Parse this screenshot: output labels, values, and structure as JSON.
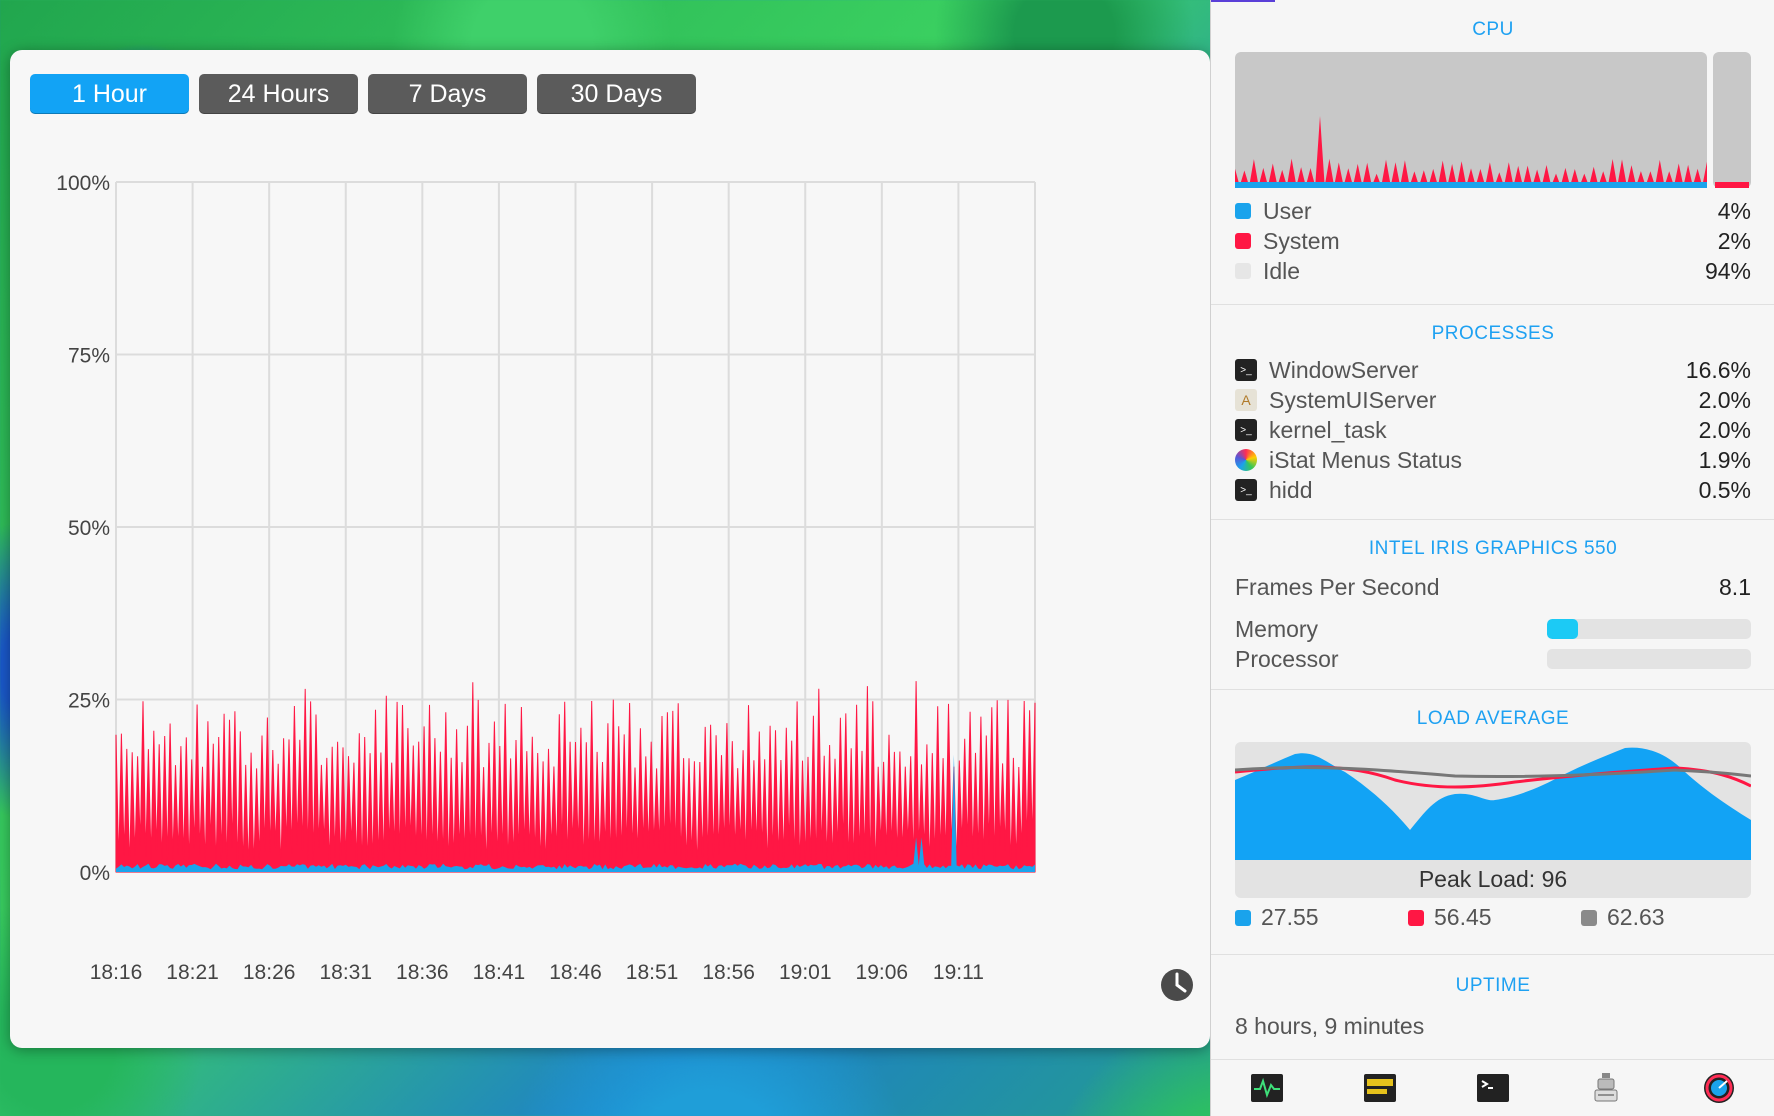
{
  "history": {
    "tabs": [
      {
        "label": "1 Hour",
        "active": true
      },
      {
        "label": "24 Hours",
        "active": false
      },
      {
        "label": "7 Days",
        "active": false
      },
      {
        "label": "30 Days",
        "active": false
      }
    ]
  },
  "chart_data": {
    "type": "area",
    "title": "",
    "xlabel": "",
    "ylabel": "",
    "y_tick_labels": [
      "100%",
      "75%",
      "50%",
      "25%",
      "0%"
    ],
    "x_tick_labels": [
      "18:16",
      "18:21",
      "18:26",
      "18:31",
      "18:36",
      "18:41",
      "18:46",
      "18:51",
      "18:56",
      "19:01",
      "19:06",
      "19:11"
    ],
    "ylim": [
      0,
      100
    ],
    "grid": true,
    "series": [
      {
        "name": "System",
        "color": "#ff1744",
        "typical_peak": 23,
        "max_peak": 29
      },
      {
        "name": "User",
        "color": "#1aa3ec",
        "typical": 1,
        "max_peak": 18
      }
    ]
  },
  "panel": {
    "cpu": {
      "title": "CPU",
      "rows": [
        {
          "label": "User",
          "value": "4%",
          "color": "#1aa3ec"
        },
        {
          "label": "System",
          "value": "2%",
          "color": "#ff1744"
        },
        {
          "label": "Idle",
          "value": "94%",
          "color": "#e6e6e6"
        }
      ]
    },
    "processes": {
      "title": "PROCESSES",
      "rows": [
        {
          "label": "WindowServer",
          "value": "16.6%",
          "icon": "terminal-icon"
        },
        {
          "label": "SystemUIServer",
          "value": "2.0%",
          "icon": "app-icon"
        },
        {
          "label": "kernel_task",
          "value": "2.0%",
          "icon": "terminal-icon"
        },
        {
          "label": "iStat Menus Status",
          "value": "1.9%",
          "icon": "istat-icon"
        },
        {
          "label": "hidd",
          "value": "0.5%",
          "icon": "terminal-icon"
        }
      ]
    },
    "gpu": {
      "title": "INTEL IRIS GRAPHICS 550",
      "fps_label": "Frames Per Second",
      "fps_value": "8.1",
      "memory_label": "Memory",
      "memory_fill": 0.15,
      "processor_label": "Processor",
      "processor_fill": 0.0
    },
    "load": {
      "title": "LOAD AVERAGE",
      "peak": "Peak Load: 96",
      "values": [
        {
          "value": "27.55",
          "color": "#1aa3ec"
        },
        {
          "value": "56.45",
          "color": "#ff1744"
        },
        {
          "value": "62.63",
          "color": "#8a8a8a"
        }
      ]
    },
    "uptime": {
      "title": "UPTIME",
      "value": "8 hours, 9 minutes"
    },
    "toolbar": [
      "activity-monitor-icon",
      "console-icon",
      "terminal-icon",
      "system-information-icon",
      "istat-menus-icon"
    ]
  }
}
